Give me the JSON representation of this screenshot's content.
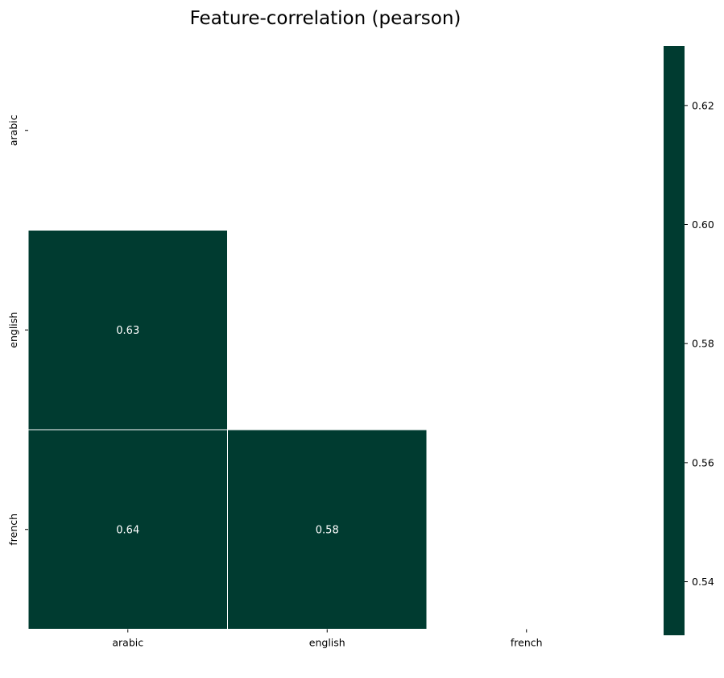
{
  "chart_data": {
    "type": "heatmap",
    "title": "Feature-correlation (pearson)",
    "rows": [
      "arabic",
      "english",
      "french"
    ],
    "columns": [
      "arabic",
      "english",
      "french"
    ],
    "mask": "upper-triangle-including-diagonal",
    "cells": [
      {
        "row": "english",
        "col": "arabic",
        "value": 0.63,
        "label": "0.63"
      },
      {
        "row": "french",
        "col": "arabic",
        "value": 0.64,
        "label": "0.64"
      },
      {
        "row": "french",
        "col": "english",
        "value": 0.58,
        "label": "0.58"
      }
    ],
    "cell_color": "#003b30",
    "cell_border_color": "#ffffff",
    "label_color": "#ffffff",
    "colorbar": {
      "range": [
        0.531,
        0.63
      ],
      "ticks": [
        0.54,
        0.56,
        0.58,
        0.6,
        0.62
      ],
      "tick_labels": [
        "0.54",
        "0.56",
        "0.58",
        "0.60",
        "0.62"
      ],
      "color": "#003b30"
    }
  }
}
